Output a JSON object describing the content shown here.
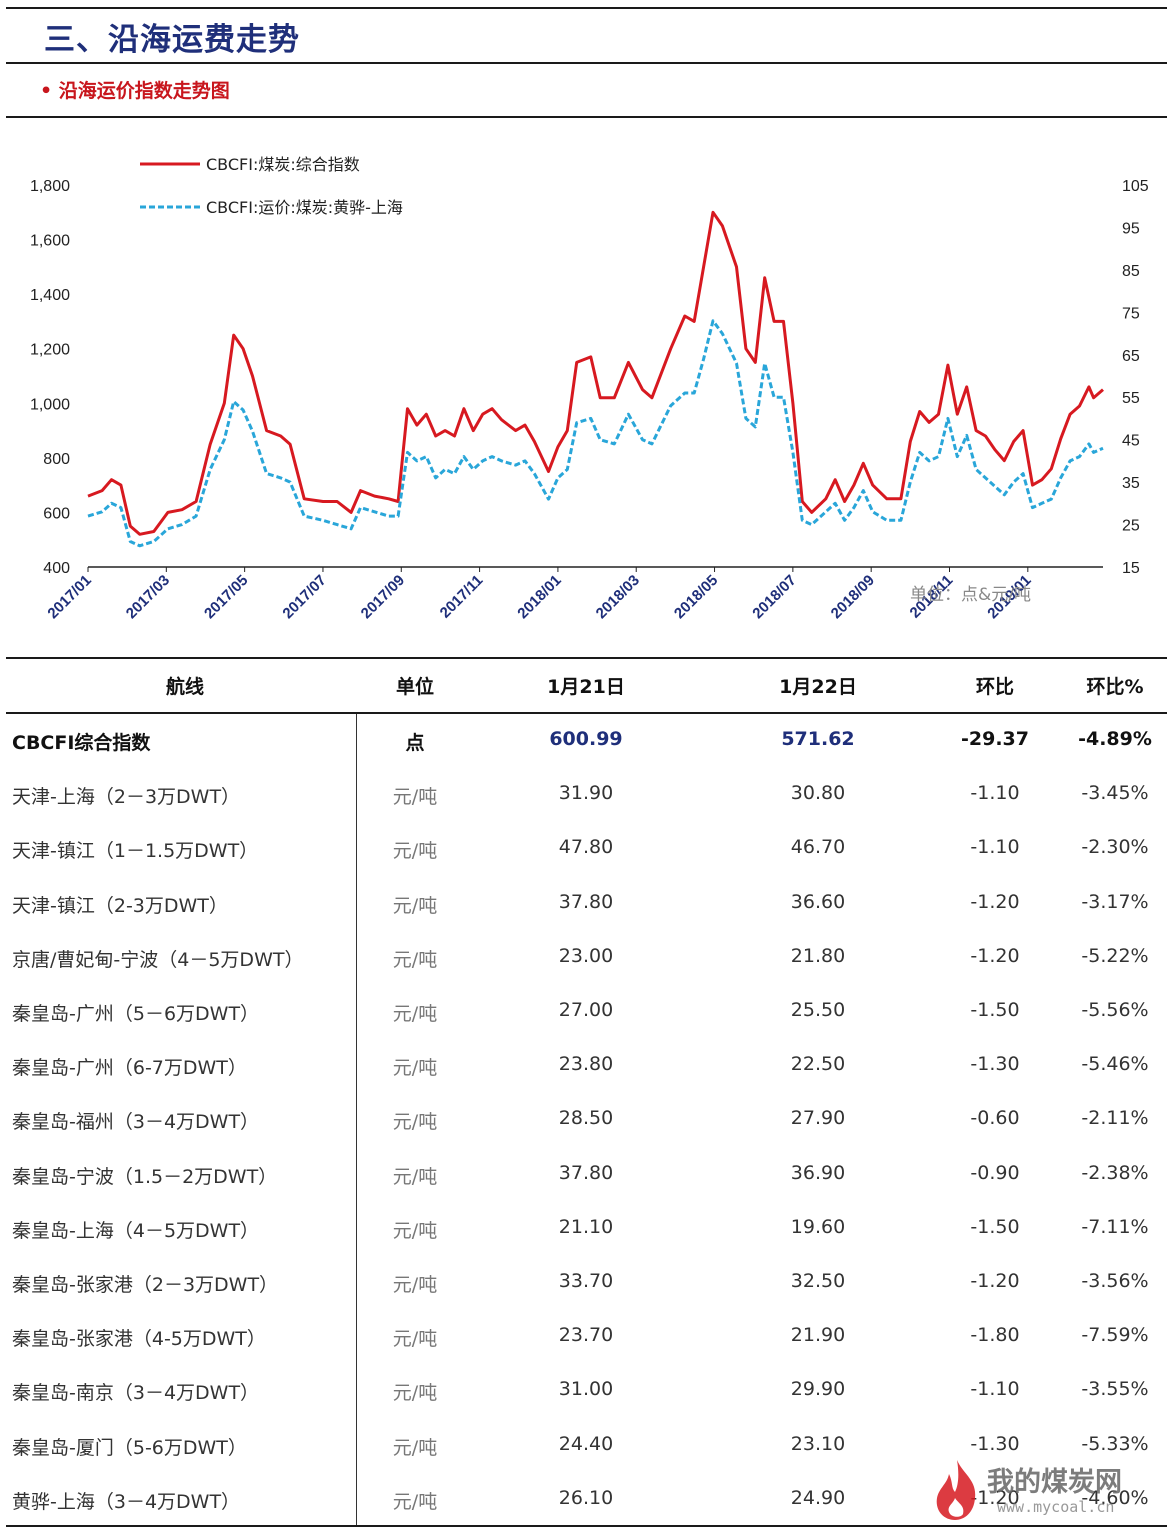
{
  "header": {
    "title": "三、沿海运费走势",
    "subtitle": "• 沿海运价指数走势图"
  },
  "chart_data": {
    "type": "line",
    "unit_note": "单位：点&元/吨",
    "x_tick_labels": [
      "2017/01",
      "2017/03",
      "2017/05",
      "2017/07",
      "2017/09",
      "2017/11",
      "2018/01",
      "2018/03",
      "2018/05",
      "2018/07",
      "2018/09",
      "2018/11",
      "2019/01"
    ],
    "y_left": {
      "min": 400,
      "max": 1800,
      "ticks": [
        "400",
        "600",
        "800",
        "1,000",
        "1,200",
        "1,400",
        "1,600",
        "1,800"
      ]
    },
    "y_right": {
      "min": 15,
      "max": 105,
      "ticks": [
        "15",
        "25",
        "35",
        "45",
        "55",
        "65",
        "75",
        "85",
        "95",
        "105"
      ]
    },
    "x_start": 2017.0,
    "x_end": 2019.16,
    "series": [
      {
        "name": "CBCFI:煤炭:综合指数",
        "axis": "left",
        "color": "#d71920",
        "style": "solid",
        "points": [
          [
            2017.0,
            660
          ],
          [
            2017.03,
            680
          ],
          [
            2017.05,
            720
          ],
          [
            2017.07,
            700
          ],
          [
            2017.09,
            550
          ],
          [
            2017.11,
            520
          ],
          [
            2017.14,
            530
          ],
          [
            2017.17,
            600
          ],
          [
            2017.2,
            610
          ],
          [
            2017.23,
            640
          ],
          [
            2017.26,
            850
          ],
          [
            2017.29,
            1000
          ],
          [
            2017.31,
            1250
          ],
          [
            2017.33,
            1200
          ],
          [
            2017.35,
            1100
          ],
          [
            2017.38,
            900
          ],
          [
            2017.41,
            880
          ],
          [
            2017.43,
            850
          ],
          [
            2017.46,
            650
          ],
          [
            2017.5,
            640
          ],
          [
            2017.53,
            640
          ],
          [
            2017.56,
            600
          ],
          [
            2017.58,
            680
          ],
          [
            2017.61,
            660
          ],
          [
            2017.64,
            650
          ],
          [
            2017.66,
            640
          ],
          [
            2017.68,
            980
          ],
          [
            2017.7,
            920
          ],
          [
            2017.72,
            960
          ],
          [
            2017.74,
            880
          ],
          [
            2017.76,
            900
          ],
          [
            2017.78,
            880
          ],
          [
            2017.8,
            980
          ],
          [
            2017.82,
            900
          ],
          [
            2017.84,
            960
          ],
          [
            2017.86,
            980
          ],
          [
            2017.88,
            940
          ],
          [
            2017.91,
            900
          ],
          [
            2017.93,
            920
          ],
          [
            2017.95,
            860
          ],
          [
            2017.98,
            750
          ],
          [
            2018.0,
            840
          ],
          [
            2018.02,
            900
          ],
          [
            2018.04,
            1150
          ],
          [
            2018.07,
            1170
          ],
          [
            2018.09,
            1020
          ],
          [
            2018.12,
            1020
          ],
          [
            2018.15,
            1150
          ],
          [
            2018.18,
            1050
          ],
          [
            2018.2,
            1020
          ],
          [
            2018.24,
            1200
          ],
          [
            2018.27,
            1320
          ],
          [
            2018.29,
            1300
          ],
          [
            2018.31,
            1500
          ],
          [
            2018.33,
            1700
          ],
          [
            2018.35,
            1650
          ],
          [
            2018.38,
            1500
          ],
          [
            2018.4,
            1200
          ],
          [
            2018.42,
            1150
          ],
          [
            2018.44,
            1460
          ],
          [
            2018.46,
            1300
          ],
          [
            2018.48,
            1300
          ],
          [
            2018.5,
            1000
          ],
          [
            2018.52,
            640
          ],
          [
            2018.54,
            600
          ],
          [
            2018.57,
            650
          ],
          [
            2018.59,
            720
          ],
          [
            2018.61,
            640
          ],
          [
            2018.63,
            700
          ],
          [
            2018.65,
            780
          ],
          [
            2018.67,
            700
          ],
          [
            2018.7,
            650
          ],
          [
            2018.73,
            650
          ],
          [
            2018.75,
            860
          ],
          [
            2018.77,
            970
          ],
          [
            2018.79,
            930
          ],
          [
            2018.81,
            960
          ],
          [
            2018.83,
            1140
          ],
          [
            2018.85,
            960
          ],
          [
            2018.87,
            1060
          ],
          [
            2018.89,
            900
          ],
          [
            2018.91,
            880
          ],
          [
            2018.93,
            830
          ],
          [
            2018.95,
            790
          ],
          [
            2018.97,
            860
          ],
          [
            2018.99,
            900
          ],
          [
            2019.01,
            700
          ],
          [
            2019.03,
            720
          ],
          [
            2019.05,
            760
          ],
          [
            2019.07,
            870
          ],
          [
            2019.09,
            960
          ],
          [
            2019.11,
            990
          ],
          [
            2019.13,
            1060
          ],
          [
            2019.14,
            1020
          ],
          [
            2019.16,
            1050
          ]
        ]
      },
      {
        "name": "CBCFI:运价:煤炭:黄骅-上海",
        "axis": "right",
        "color": "#29a6d9",
        "style": "dashed",
        "points": [
          [
            2017.0,
            27
          ],
          [
            2017.03,
            28
          ],
          [
            2017.05,
            30
          ],
          [
            2017.07,
            29
          ],
          [
            2017.09,
            21
          ],
          [
            2017.11,
            20
          ],
          [
            2017.14,
            21
          ],
          [
            2017.17,
            24
          ],
          [
            2017.2,
            25
          ],
          [
            2017.23,
            27
          ],
          [
            2017.26,
            38
          ],
          [
            2017.29,
            45
          ],
          [
            2017.31,
            54
          ],
          [
            2017.33,
            52
          ],
          [
            2017.35,
            47
          ],
          [
            2017.38,
            37
          ],
          [
            2017.41,
            36
          ],
          [
            2017.43,
            35
          ],
          [
            2017.46,
            27
          ],
          [
            2017.5,
            26
          ],
          [
            2017.53,
            25
          ],
          [
            2017.56,
            24
          ],
          [
            2017.58,
            29
          ],
          [
            2017.61,
            28
          ],
          [
            2017.64,
            27
          ],
          [
            2017.66,
            27
          ],
          [
            2017.68,
            42
          ],
          [
            2017.7,
            40
          ],
          [
            2017.72,
            41
          ],
          [
            2017.74,
            36
          ],
          [
            2017.76,
            38
          ],
          [
            2017.78,
            37
          ],
          [
            2017.8,
            41
          ],
          [
            2017.82,
            38
          ],
          [
            2017.84,
            40
          ],
          [
            2017.86,
            41
          ],
          [
            2017.88,
            40
          ],
          [
            2017.91,
            39
          ],
          [
            2017.93,
            40
          ],
          [
            2017.95,
            37
          ],
          [
            2017.98,
            31
          ],
          [
            2018.0,
            36
          ],
          [
            2018.02,
            38
          ],
          [
            2018.04,
            49
          ],
          [
            2018.07,
            50
          ],
          [
            2018.09,
            45
          ],
          [
            2018.12,
            44
          ],
          [
            2018.15,
            51
          ],
          [
            2018.18,
            45
          ],
          [
            2018.2,
            44
          ],
          [
            2018.24,
            53
          ],
          [
            2018.27,
            56
          ],
          [
            2018.29,
            56
          ],
          [
            2018.31,
            64
          ],
          [
            2018.33,
            73
          ],
          [
            2018.35,
            70
          ],
          [
            2018.38,
            63
          ],
          [
            2018.4,
            50
          ],
          [
            2018.42,
            48
          ],
          [
            2018.44,
            63
          ],
          [
            2018.46,
            55
          ],
          [
            2018.48,
            55
          ],
          [
            2018.5,
            42
          ],
          [
            2018.52,
            26
          ],
          [
            2018.54,
            25
          ],
          [
            2018.57,
            28
          ],
          [
            2018.59,
            30
          ],
          [
            2018.61,
            26
          ],
          [
            2018.63,
            29
          ],
          [
            2018.65,
            33
          ],
          [
            2018.67,
            28
          ],
          [
            2018.7,
            26
          ],
          [
            2018.73,
            26
          ],
          [
            2018.75,
            35
          ],
          [
            2018.77,
            42
          ],
          [
            2018.79,
            40
          ],
          [
            2018.81,
            41
          ],
          [
            2018.83,
            50
          ],
          [
            2018.85,
            41
          ],
          [
            2018.87,
            46
          ],
          [
            2018.89,
            38
          ],
          [
            2018.91,
            36
          ],
          [
            2018.93,
            34
          ],
          [
            2018.95,
            32
          ],
          [
            2018.97,
            35
          ],
          [
            2018.99,
            37
          ],
          [
            2019.01,
            29
          ],
          [
            2019.03,
            30
          ],
          [
            2019.05,
            31
          ],
          [
            2019.07,
            36
          ],
          [
            2019.09,
            40
          ],
          [
            2019.11,
            41
          ],
          [
            2019.13,
            44
          ],
          [
            2019.14,
            42
          ],
          [
            2019.16,
            43
          ]
        ]
      }
    ]
  },
  "table": {
    "headers": [
      "航线",
      "单位",
      "1月21日",
      "1月22日",
      "环比",
      "环比%"
    ],
    "rows": [
      {
        "route": "CBCFI综合指数",
        "unit": "点",
        "d1": "600.99",
        "d2": "571.62",
        "chg": "-29.37",
        "pct": "-4.89%",
        "bold": true
      },
      {
        "route": "天津-上海（2－3万DWT）",
        "unit": "元/吨",
        "d1": "31.90",
        "d2": "30.80",
        "chg": "-1.10",
        "pct": "-3.45%"
      },
      {
        "route": "天津-镇江（1－1.5万DWT）",
        "unit": "元/吨",
        "d1": "47.80",
        "d2": "46.70",
        "chg": "-1.10",
        "pct": "-2.30%"
      },
      {
        "route": "天津-镇江（2-3万DWT）",
        "unit": "元/吨",
        "d1": "37.80",
        "d2": "36.60",
        "chg": "-1.20",
        "pct": "-3.17%"
      },
      {
        "route": "京唐/曹妃甸-宁波（4－5万DWT）",
        "unit": "元/吨",
        "d1": "23.00",
        "d2": "21.80",
        "chg": "-1.20",
        "pct": "-5.22%"
      },
      {
        "route": "秦皇岛-广州（5－6万DWT）",
        "unit": "元/吨",
        "d1": "27.00",
        "d2": "25.50",
        "chg": "-1.50",
        "pct": "-5.56%"
      },
      {
        "route": "秦皇岛-广州（6-7万DWT）",
        "unit": "元/吨",
        "d1": "23.80",
        "d2": "22.50",
        "chg": "-1.30",
        "pct": "-5.46%"
      },
      {
        "route": "秦皇岛-福州（3－4万DWT）",
        "unit": "元/吨",
        "d1": "28.50",
        "d2": "27.90",
        "chg": "-0.60",
        "pct": "-2.11%"
      },
      {
        "route": "秦皇岛-宁波（1.5－2万DWT）",
        "unit": "元/吨",
        "d1": "37.80",
        "d2": "36.90",
        "chg": "-0.90",
        "pct": "-2.38%"
      },
      {
        "route": "秦皇岛-上海（4－5万DWT）",
        "unit": "元/吨",
        "d1": "21.10",
        "d2": "19.60",
        "chg": "-1.50",
        "pct": "-7.11%"
      },
      {
        "route": "秦皇岛-张家港（2－3万DWT）",
        "unit": "元/吨",
        "d1": "33.70",
        "d2": "32.50",
        "chg": "-1.20",
        "pct": "-3.56%"
      },
      {
        "route": "秦皇岛-张家港（4-5万DWT）",
        "unit": "元/吨",
        "d1": "23.70",
        "d2": "21.90",
        "chg": "-1.80",
        "pct": "-7.59%"
      },
      {
        "route": "秦皇岛-南京（3－4万DWT）",
        "unit": "元/吨",
        "d1": "31.00",
        "d2": "29.90",
        "chg": "-1.10",
        "pct": "-3.55%"
      },
      {
        "route": "秦皇岛-厦门（5-6万DWT）",
        "unit": "元/吨",
        "d1": "24.40",
        "d2": "23.10",
        "chg": "-1.30",
        "pct": "-5.33%"
      },
      {
        "route": "黄骅-上海（3－4万DWT）",
        "unit": "元/吨",
        "d1": "26.10",
        "d2": "24.90",
        "chg": "-1.20",
        "pct": "-4.60%"
      }
    ]
  },
  "watermark": {
    "text": "我的煤炭网",
    "url": "www.mycoal.cn",
    "flame_color": "#d71920"
  }
}
